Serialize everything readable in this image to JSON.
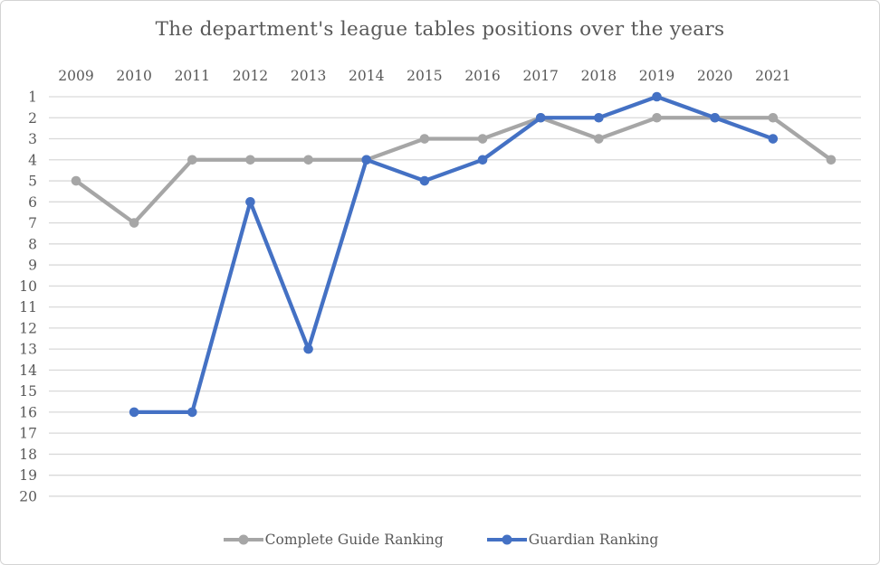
{
  "chart_data": {
    "type": "line",
    "title": "The department's league tables positions over the years",
    "categories": [
      "2009",
      "2010",
      "2011",
      "2012",
      "2013",
      "2014",
      "2015",
      "2016",
      "2017",
      "2018",
      "2019",
      "2020",
      "2021",
      ""
    ],
    "series": [
      {
        "name": "Complete Guide Ranking",
        "color": "#a6a6a6",
        "values": [
          5,
          7,
          4,
          4,
          4,
          4,
          3,
          3,
          2,
          3,
          2,
          2,
          2,
          4
        ]
      },
      {
        "name": "Guardian Ranking",
        "color": "#4471c4",
        "values": [
          null,
          16,
          16,
          6,
          13,
          4,
          5,
          4,
          2,
          2,
          1,
          2,
          3,
          null
        ]
      }
    ],
    "y_ticks": [
      1,
      2,
      3,
      4,
      5,
      6,
      7,
      8,
      9,
      10,
      11,
      12,
      13,
      14,
      15,
      16,
      17,
      18,
      19,
      20
    ],
    "ylim": [
      1,
      20
    ],
    "y_axis_inverted": true,
    "x_axis_position": "top",
    "grid": "horizontal",
    "legend_position": "bottom",
    "colors": {
      "grid": "#d9d9d9",
      "text": "#595959",
      "frame_border": "#d4d4d4",
      "background": "#ffffff"
    }
  }
}
